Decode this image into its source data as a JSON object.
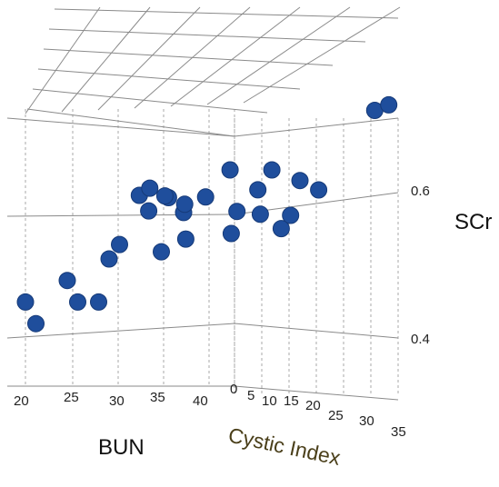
{
  "chart_data": {
    "type": "scatter",
    "projection": "3d",
    "axes": {
      "x": {
        "label": "BUN",
        "ticks": [
          "20",
          "25",
          "30",
          "35",
          "40"
        ],
        "range": [
          20,
          40
        ]
      },
      "y": {
        "label": "Cystic Index",
        "ticks": [
          "0",
          "5",
          "10",
          "15",
          "20",
          "25",
          "30",
          "35"
        ],
        "range": [
          0,
          35
        ]
      },
      "z": {
        "label": "SCr",
        "ticks": [
          "0.4",
          "0.6"
        ],
        "range": [
          0.35,
          0.75
        ]
      }
    },
    "grid": true,
    "marker_color": "#1f4e9c",
    "points": [
      {
        "bun": 20,
        "ci": 0,
        "scr": 0.4
      },
      {
        "bun": 21,
        "ci": 0,
        "scr": 0.37
      },
      {
        "bun": 24,
        "ci": 0,
        "scr": 0.43
      },
      {
        "bun": 25,
        "ci": 0,
        "scr": 0.4
      },
      {
        "bun": 27,
        "ci": 0,
        "scr": 0.4
      },
      {
        "bun": 28,
        "ci": 0,
        "scr": 0.46
      },
      {
        "bun": 29,
        "ci": 0,
        "scr": 0.48
      },
      {
        "bun": 30,
        "ci": 2,
        "scr": 0.55
      },
      {
        "bun": 30,
        "ci": 4,
        "scr": 0.53
      },
      {
        "bun": 31,
        "ci": 2,
        "scr": 0.56
      },
      {
        "bun": 31,
        "ci": 6,
        "scr": 0.55
      },
      {
        "bun": 32,
        "ci": 3,
        "scr": 0.55
      },
      {
        "bun": 32,
        "ci": 7,
        "scr": 0.53
      },
      {
        "bun": 33,
        "ci": 5,
        "scr": 0.54
      },
      {
        "bun": 33,
        "ci": 0,
        "scr": 0.47
      },
      {
        "bun": 34,
        "ci": 3,
        "scr": 0.49
      },
      {
        "bun": 35,
        "ci": 5,
        "scr": 0.55
      },
      {
        "bun": 36,
        "ci": 8,
        "scr": 0.59
      },
      {
        "bun": 37,
        "ci": 6,
        "scr": 0.5
      },
      {
        "bun": 38,
        "ci": 10,
        "scr": 0.53
      },
      {
        "bun": 38,
        "ci": 5,
        "scr": 0.53
      },
      {
        "bun": 40,
        "ci": 8,
        "scr": 0.59
      },
      {
        "bun": 40,
        "ci": 12,
        "scr": 0.53
      },
      {
        "bun": 40,
        "ci": 5,
        "scr": 0.56
      },
      {
        "bun": 40,
        "ci": 10,
        "scr": 0.51
      },
      {
        "bun": 40,
        "ci": 14,
        "scr": 0.58
      },
      {
        "bun": 40,
        "ci": 18,
        "scr": 0.57
      },
      {
        "bun": 40,
        "ci": 30,
        "scr": 0.69
      },
      {
        "bun": 40,
        "ci": 33,
        "scr": 0.7
      }
    ]
  }
}
